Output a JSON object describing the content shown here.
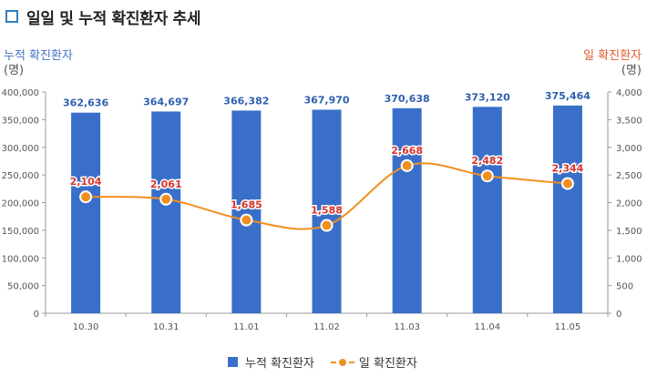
{
  "title": "일일 및 누적 확진환자 추세",
  "axis_titles": {
    "left": "누적 확진환자",
    "left_unit": "(명)",
    "right": "일 확진환자",
    "right_unit": "(명)"
  },
  "legend": {
    "bar": "누적 확진환자",
    "line": "일 확진환자"
  },
  "colors": {
    "bar": "#3a6fc9",
    "bar_label": "#2f5fb0",
    "line": "#f0901f",
    "line_label": "#d9342b",
    "left_axis_title": "#4472c4",
    "right_axis_title": "#e05a2b"
  },
  "chart_data": {
    "type": "bar",
    "categories": [
      "10.30",
      "10.31",
      "11.01",
      "11.02",
      "11.03",
      "11.04",
      "11.05"
    ],
    "series": [
      {
        "name": "누적 확진환자",
        "type": "bar",
        "axis": "left",
        "values": [
          362636,
          364697,
          366382,
          367970,
          370638,
          373120,
          375464
        ],
        "labels": [
          "362,636",
          "364,697",
          "366,382",
          "367,970",
          "370,638",
          "373,120",
          "375,464"
        ]
      },
      {
        "name": "일 확진환자",
        "type": "line",
        "axis": "right",
        "values": [
          2104,
          2061,
          1685,
          1588,
          2668,
          2482,
          2344
        ],
        "labels": [
          "2,104",
          "2,061",
          "1,685",
          "1,588",
          "2,668",
          "2,482",
          "2,344"
        ]
      }
    ],
    "y_left": {
      "min": 0,
      "max": 400000,
      "ticks": [
        "0",
        "50,000",
        "100,000",
        "150,000",
        "200,000",
        "250,000",
        "300,000",
        "350,000",
        "400,000"
      ]
    },
    "y_right": {
      "min": 0,
      "max": 4000,
      "ticks": [
        "0",
        "500",
        "1,000",
        "1,500",
        "2,000",
        "2,500",
        "3,000",
        "3,500",
        "4,000"
      ]
    },
    "grid": false,
    "legend_position": "bottom"
  }
}
